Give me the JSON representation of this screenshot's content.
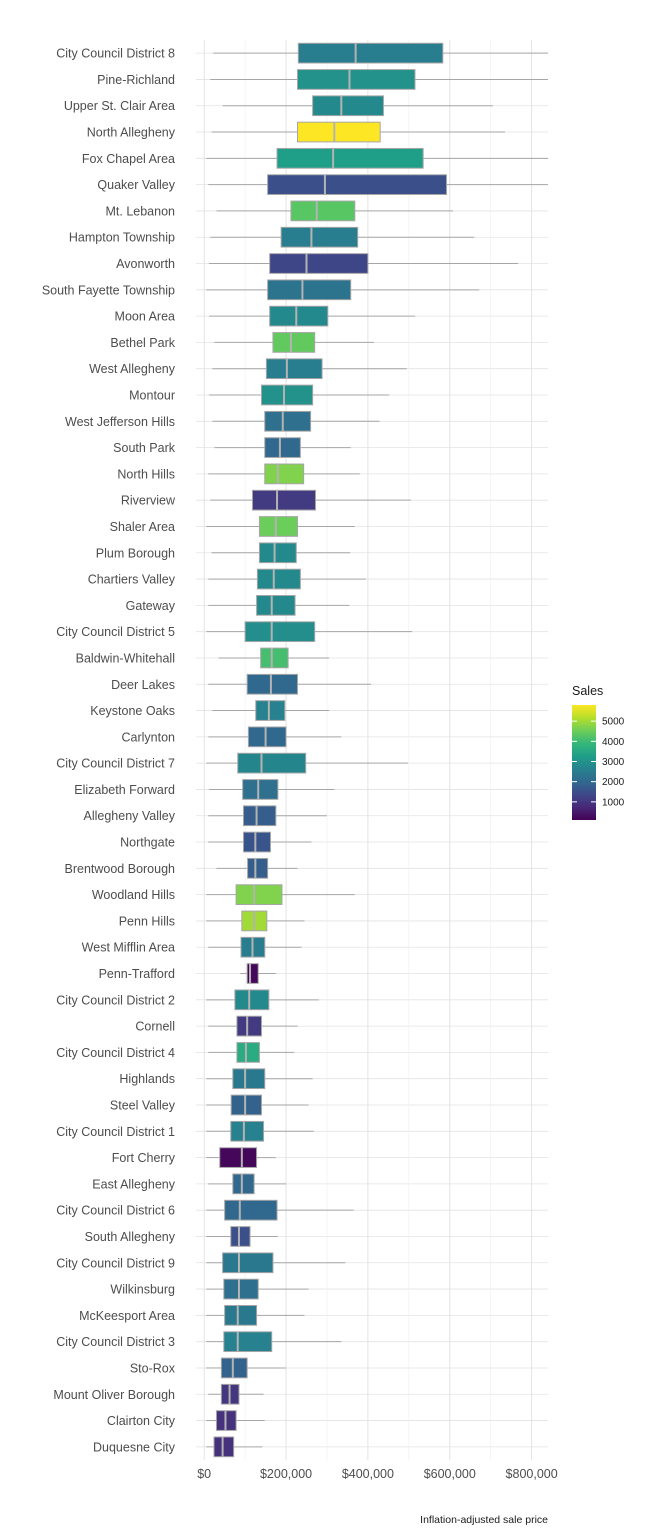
{
  "chart_data": {
    "type": "boxplot",
    "xlabel": "Inflation-adjusted sale price",
    "x_ticks": [
      {
        "value": 0,
        "label": "$0"
      },
      {
        "value": 200000,
        "label": "$200,000"
      },
      {
        "value": 400000,
        "label": "$400,000"
      },
      {
        "value": 600000,
        "label": "$600,000"
      },
      {
        "value": 800000,
        "label": "$800,000"
      }
    ],
    "xlim": [
      -20000,
      840000
    ],
    "grid": true,
    "legend": {
      "title": "Sales",
      "placement": "right",
      "colormap": "viridis",
      "range": [
        100,
        5800
      ],
      "ticks": [
        1000,
        2000,
        3000,
        4000,
        5000
      ]
    },
    "series": [
      {
        "name": "City Council District 8",
        "whisker_low": 22000,
        "q1": 230000,
        "median": 370000,
        "q3": 583000,
        "whisker_high": 840000,
        "sales": 2500
      },
      {
        "name": "Pine-Richland",
        "whisker_low": 15000,
        "q1": 228000,
        "median": 355000,
        "q3": 515000,
        "whisker_high": 840000,
        "sales": 3000
      },
      {
        "name": "Upper St. Clair Area",
        "whisker_low": 45000,
        "q1": 265000,
        "median": 335000,
        "q3": 438000,
        "whisker_high": 705000,
        "sales": 2800
      },
      {
        "name": "North Allegheny",
        "whisker_low": 18000,
        "q1": 228000,
        "median": 318000,
        "q3": 430000,
        "whisker_high": 735000,
        "sales": 5800
      },
      {
        "name": "Fox Chapel Area",
        "whisker_low": 5000,
        "q1": 178000,
        "median": 315000,
        "q3": 535000,
        "whisker_high": 840000,
        "sales": 3300
      },
      {
        "name": "Quaker Valley",
        "whisker_low": 10000,
        "q1": 155000,
        "median": 295000,
        "q3": 592000,
        "whisker_high": 840000,
        "sales": 1500
      },
      {
        "name": "Mt. Lebanon",
        "whisker_low": 30000,
        "q1": 212000,
        "median": 275000,
        "q3": 368000,
        "whisker_high": 608000,
        "sales": 4300
      },
      {
        "name": "Hampton Township",
        "whisker_low": 15000,
        "q1": 188000,
        "median": 262000,
        "q3": 375000,
        "whisker_high": 660000,
        "sales": 2500
      },
      {
        "name": "Avonworth",
        "whisker_low": 12000,
        "q1": 160000,
        "median": 250000,
        "q3": 400000,
        "whisker_high": 767000,
        "sales": 1300
      },
      {
        "name": "South Fayette Township",
        "whisker_low": 5000,
        "q1": 155000,
        "median": 240000,
        "q3": 358000,
        "whisker_high": 672000,
        "sales": 2300
      },
      {
        "name": "Moon Area",
        "whisker_low": 12000,
        "q1": 160000,
        "median": 225000,
        "q3": 302000,
        "whisker_high": 515000,
        "sales": 2800
      },
      {
        "name": "Bethel Park",
        "whisker_low": 25000,
        "q1": 168000,
        "median": 212000,
        "q3": 270000,
        "whisker_high": 415000,
        "sales": 4400
      },
      {
        "name": "West Allegheny",
        "whisker_low": 20000,
        "q1": 152000,
        "median": 202000,
        "q3": 288000,
        "whisker_high": 495000,
        "sales": 2500
      },
      {
        "name": "Montour",
        "whisker_low": 12000,
        "q1": 140000,
        "median": 195000,
        "q3": 265000,
        "whisker_high": 452000,
        "sales": 3000
      },
      {
        "name": "West Jefferson Hills",
        "whisker_low": 20000,
        "q1": 148000,
        "median": 192000,
        "q3": 260000,
        "whisker_high": 428000,
        "sales": 2200
      },
      {
        "name": "South Park",
        "whisker_low": 25000,
        "q1": 148000,
        "median": 185000,
        "q3": 235000,
        "whisker_high": 358000,
        "sales": 2000
      },
      {
        "name": "North Hills",
        "whisker_low": 10000,
        "q1": 148000,
        "median": 180000,
        "q3": 243000,
        "whisker_high": 380000,
        "sales": 4700
      },
      {
        "name": "Riverview",
        "whisker_low": 15000,
        "q1": 118000,
        "median": 178000,
        "q3": 272000,
        "whisker_high": 505000,
        "sales": 1100
      },
      {
        "name": "Shaler Area",
        "whisker_low": 5000,
        "q1": 135000,
        "median": 175000,
        "q3": 228000,
        "whisker_high": 368000,
        "sales": 4500
      },
      {
        "name": "Plum Borough",
        "whisker_low": 18000,
        "q1": 135000,
        "median": 172000,
        "q3": 225000,
        "whisker_high": 357000,
        "sales": 2800
      },
      {
        "name": "Chartiers Valley",
        "whisker_low": 10000,
        "q1": 130000,
        "median": 170000,
        "q3": 235000,
        "whisker_high": 395000,
        "sales": 2800
      },
      {
        "name": "Gateway",
        "whisker_low": 10000,
        "q1": 128000,
        "median": 165000,
        "q3": 222000,
        "whisker_high": 355000,
        "sales": 2800
      },
      {
        "name": "City Council District 5",
        "whisker_low": 5000,
        "q1": 100000,
        "median": 165000,
        "q3": 270000,
        "whisker_high": 508000,
        "sales": 2900
      },
      {
        "name": "Baldwin-Whitehall",
        "whisker_low": 35000,
        "q1": 138000,
        "median": 165000,
        "q3": 205000,
        "whisker_high": 305000,
        "sales": 4100
      },
      {
        "name": "Deer Lakes",
        "whisker_low": 10000,
        "q1": 105000,
        "median": 163000,
        "q3": 228000,
        "whisker_high": 408000,
        "sales": 2000
      },
      {
        "name": "Keystone Oaks",
        "whisker_low": 20000,
        "q1": 126000,
        "median": 158000,
        "q3": 197000,
        "whisker_high": 305000,
        "sales": 2600
      },
      {
        "name": "Carlynton",
        "whisker_low": 10000,
        "q1": 108000,
        "median": 150000,
        "q3": 200000,
        "whisker_high": 335000,
        "sales": 2000
      },
      {
        "name": "City Council District 7",
        "whisker_low": 5000,
        "q1": 82000,
        "median": 140000,
        "q3": 248000,
        "whisker_high": 498000,
        "sales": 2700
      },
      {
        "name": "Elizabeth Forward",
        "whisker_low": 12000,
        "q1": 94000,
        "median": 132000,
        "q3": 180000,
        "whisker_high": 318000,
        "sales": 2200
      },
      {
        "name": "Allegheny Valley",
        "whisker_low": 10000,
        "q1": 96000,
        "median": 128000,
        "q3": 175000,
        "whisker_high": 300000,
        "sales": 1800
      },
      {
        "name": "Northgate",
        "whisker_low": 10000,
        "q1": 96000,
        "median": 125000,
        "q3": 162000,
        "whisker_high": 262000,
        "sales": 1600
      },
      {
        "name": "Brentwood Borough",
        "whisker_low": 30000,
        "q1": 106000,
        "median": 125000,
        "q3": 155000,
        "whisker_high": 228000,
        "sales": 1800
      },
      {
        "name": "Woodland Hills",
        "whisker_low": 5000,
        "q1": 78000,
        "median": 122000,
        "q3": 190000,
        "whisker_high": 368000,
        "sales": 4700
      },
      {
        "name": "Penn Hills",
        "whisker_low": 5000,
        "q1": 92000,
        "median": 122000,
        "q3": 153000,
        "whisker_high": 245000,
        "sales": 5000
      },
      {
        "name": "West Mifflin Area",
        "whisker_low": 10000,
        "q1": 90000,
        "median": 118000,
        "q3": 148000,
        "whisker_high": 238000,
        "sales": 2500
      },
      {
        "name": "Penn-Trafford",
        "whisker_low": 88000,
        "q1": 105000,
        "median": 112000,
        "q3": 132000,
        "whisker_high": 175000,
        "sales": 200
      },
      {
        "name": "City Council District 2",
        "whisker_low": 5000,
        "q1": 75000,
        "median": 110000,
        "q3": 158000,
        "whisker_high": 280000,
        "sales": 2800
      },
      {
        "name": "Cornell",
        "whisker_low": 10000,
        "q1": 80000,
        "median": 105000,
        "q3": 140000,
        "whisker_high": 228000,
        "sales": 1100
      },
      {
        "name": "City Council District 4",
        "whisker_low": 10000,
        "q1": 80000,
        "median": 102000,
        "q3": 135000,
        "whisker_high": 220000,
        "sales": 3600
      },
      {
        "name": "Highlands",
        "whisker_low": 5000,
        "q1": 70000,
        "median": 100000,
        "q3": 148000,
        "whisker_high": 265000,
        "sales": 2400
      },
      {
        "name": "Steel Valley",
        "whisker_low": 5000,
        "q1": 66000,
        "median": 100000,
        "q3": 140000,
        "whisker_high": 255000,
        "sales": 1900
      },
      {
        "name": "City Council District 1",
        "whisker_low": 5000,
        "q1": 65000,
        "median": 97000,
        "q3": 145000,
        "whisker_high": 268000,
        "sales": 2600
      },
      {
        "name": "Fort Cherry",
        "whisker_low": 5000,
        "q1": 38000,
        "median": 92000,
        "q3": 128000,
        "whisker_high": 175000,
        "sales": 200
      },
      {
        "name": "East Allegheny",
        "whisker_low": 10000,
        "q1": 70000,
        "median": 92000,
        "q3": 122000,
        "whisker_high": 200000,
        "sales": 2000
      },
      {
        "name": "City Council District 6",
        "whisker_low": 5000,
        "q1": 50000,
        "median": 87000,
        "q3": 178000,
        "whisker_high": 365000,
        "sales": 2000
      },
      {
        "name": "South Allegheny",
        "whisker_low": 5000,
        "q1": 65000,
        "median": 85000,
        "q3": 112000,
        "whisker_high": 180000,
        "sales": 1500
      },
      {
        "name": "City Council District 9",
        "whisker_low": 5000,
        "q1": 45000,
        "median": 85000,
        "q3": 168000,
        "whisker_high": 345000,
        "sales": 2400
      },
      {
        "name": "Wilkinsburg",
        "whisker_low": 5000,
        "q1": 48000,
        "median": 85000,
        "q3": 132000,
        "whisker_high": 255000,
        "sales": 2200
      },
      {
        "name": "McKeesport Area",
        "whisker_low": 5000,
        "q1": 50000,
        "median": 82000,
        "q3": 128000,
        "whisker_high": 245000,
        "sales": 2400
      },
      {
        "name": "City Council District 3",
        "whisker_low": 5000,
        "q1": 48000,
        "median": 82000,
        "q3": 165000,
        "whisker_high": 335000,
        "sales": 2600
      },
      {
        "name": "Sto-Rox",
        "whisker_low": 5000,
        "q1": 42000,
        "median": 70000,
        "q3": 105000,
        "whisker_high": 200000,
        "sales": 1900
      },
      {
        "name": "Mount Oliver Borough",
        "whisker_low": 10000,
        "q1": 42000,
        "median": 62000,
        "q3": 85000,
        "whisker_high": 145000,
        "sales": 1000
      },
      {
        "name": "Clairton City",
        "whisker_low": 5000,
        "q1": 30000,
        "median": 52000,
        "q3": 78000,
        "whisker_high": 148000,
        "sales": 900
      },
      {
        "name": "Duquesne City",
        "whisker_low": 5000,
        "q1": 24000,
        "median": 45000,
        "q3": 72000,
        "whisker_high": 142000,
        "sales": 900
      }
    ]
  }
}
